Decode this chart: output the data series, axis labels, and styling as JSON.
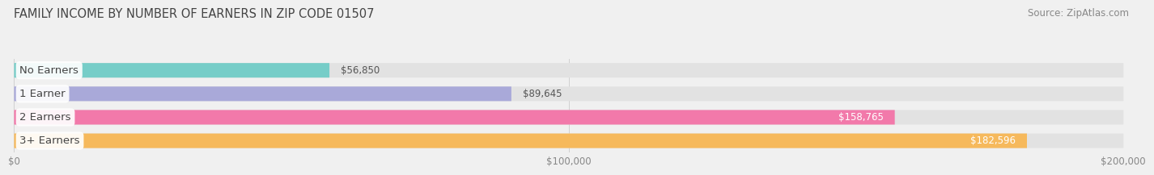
{
  "title": "FAMILY INCOME BY NUMBER OF EARNERS IN ZIP CODE 01507",
  "source": "Source: ZipAtlas.com",
  "categories": [
    "No Earners",
    "1 Earner",
    "2 Earners",
    "3+ Earners"
  ],
  "values": [
    56850,
    89645,
    158765,
    182596
  ],
  "bar_colors": [
    "#76cdc8",
    "#a9a9d9",
    "#f279aa",
    "#f6b95c"
  ],
  "value_labels": [
    "$56,850",
    "$89,645",
    "$158,765",
    "$182,596"
  ],
  "value_label_colors": [
    "#555555",
    "#555555",
    "#ffffff",
    "#ffffff"
  ],
  "xlim": [
    0,
    200000
  ],
  "xticks": [
    0,
    100000,
    200000
  ],
  "xtick_labels": [
    "$0",
    "$100,000",
    "$200,000"
  ],
  "background_color": "#f0f0f0",
  "bar_background_color": "#e2e2e2",
  "title_fontsize": 10.5,
  "source_fontsize": 8.5,
  "label_fontsize": 9.5,
  "value_fontsize": 8.5,
  "bar_height": 0.62
}
